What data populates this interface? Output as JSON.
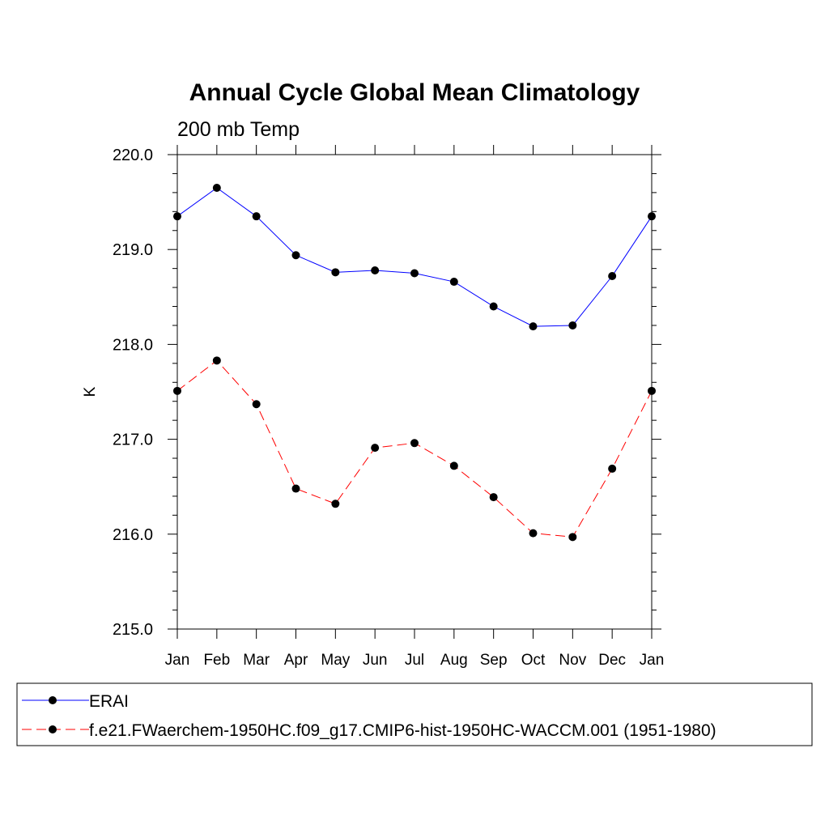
{
  "chart_data": {
    "type": "line",
    "title": "Annual Cycle Global Mean Climatology",
    "subtitle": "200 mb Temp",
    "xlabel": "",
    "ylabel": "K",
    "categories": [
      "Jan",
      "Feb",
      "Mar",
      "Apr",
      "May",
      "Jun",
      "Jul",
      "Aug",
      "Sep",
      "Oct",
      "Nov",
      "Dec",
      "Jan"
    ],
    "ylim": [
      215.0,
      220.0
    ],
    "yticks": [
      "215.0",
      "216.0",
      "217.0",
      "218.0",
      "219.0",
      "220.0"
    ],
    "grid": false,
    "legend_position": "bottom",
    "series": [
      {
        "name": "ERAI",
        "color": "#0000ff",
        "dash": "solid",
        "values": [
          219.35,
          219.65,
          219.35,
          218.94,
          218.76,
          218.78,
          218.75,
          218.66,
          218.4,
          218.19,
          218.2,
          218.72,
          219.35
        ]
      },
      {
        "name": "f.e21.FWaerchem-1950HC.f09_g17.CMIP6-hist-1950HC-WACCM.001 (1951-1980)",
        "color": "#ff0000",
        "dash": "dashed",
        "values": [
          217.51,
          217.83,
          217.37,
          216.48,
          216.32,
          216.91,
          216.96,
          216.72,
          216.39,
          216.01,
          215.97,
          216.69,
          217.51
        ]
      }
    ]
  }
}
